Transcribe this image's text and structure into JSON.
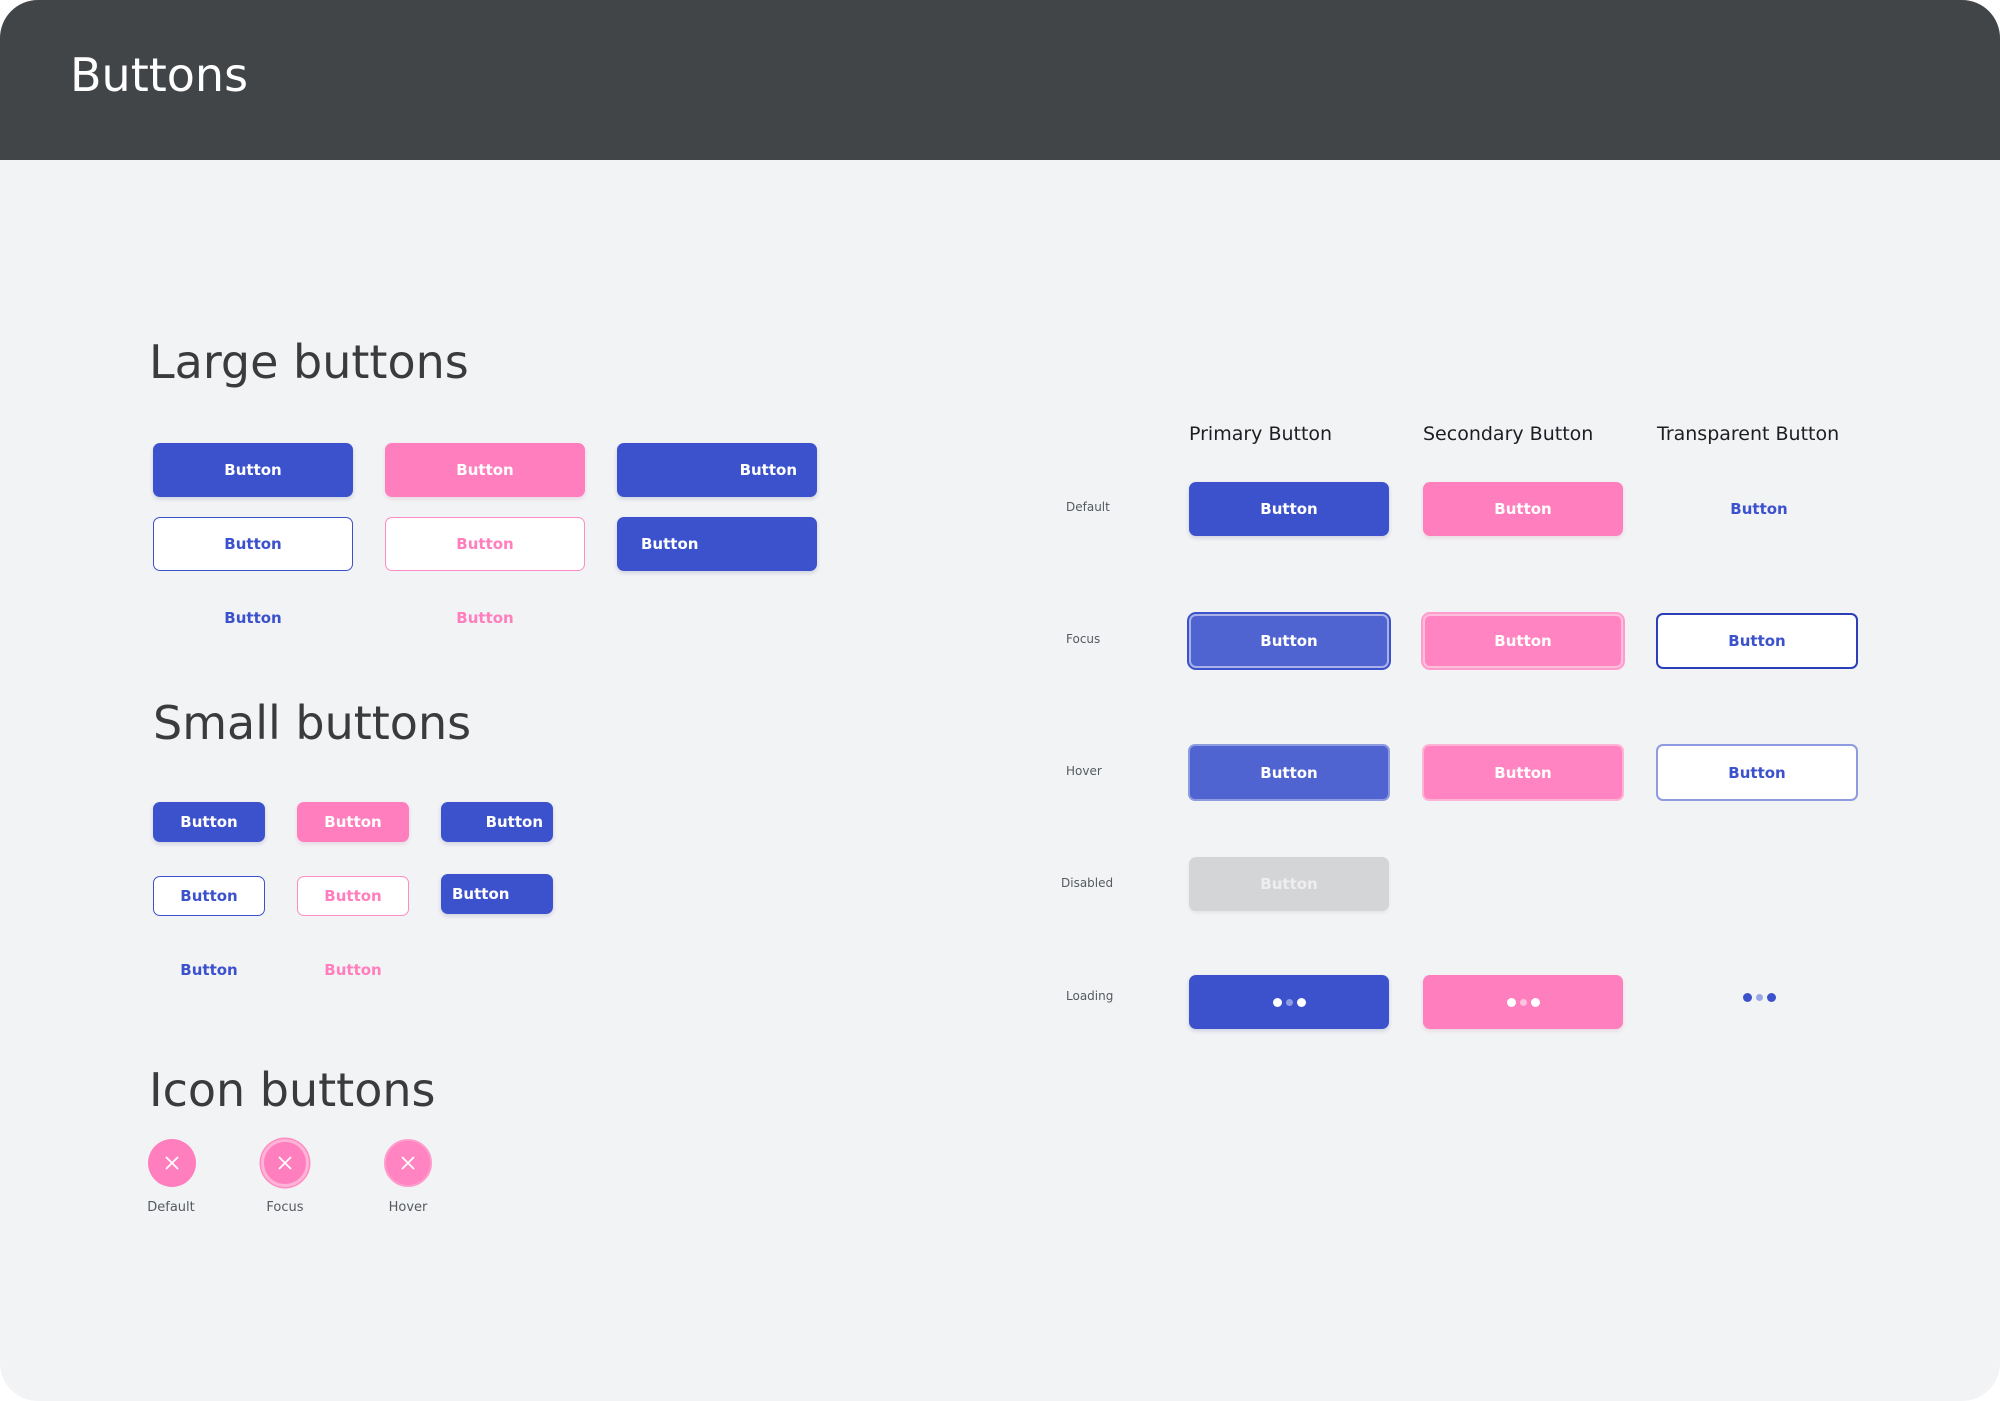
{
  "page": {
    "title": "Buttons"
  },
  "sections": {
    "large": "Large buttons",
    "small": "Small buttons",
    "icon": "Icon buttons"
  },
  "button_label": "Button",
  "states_table": {
    "columns": [
      "Primary Button",
      "Secondary Button",
      "Transparent Button"
    ],
    "rows": [
      "Default",
      "Focus",
      "Hover",
      "Disabled",
      "Loading"
    ]
  },
  "icon_buttons": {
    "icon": "close-icon",
    "labels": [
      "Default",
      "Focus",
      "Hover"
    ]
  },
  "colors": {
    "primary": "#3c52cc",
    "secondary": "#ff7ebd",
    "header": "#414548",
    "background": "#f2f3f5",
    "disabled": "#d4d5d7"
  }
}
